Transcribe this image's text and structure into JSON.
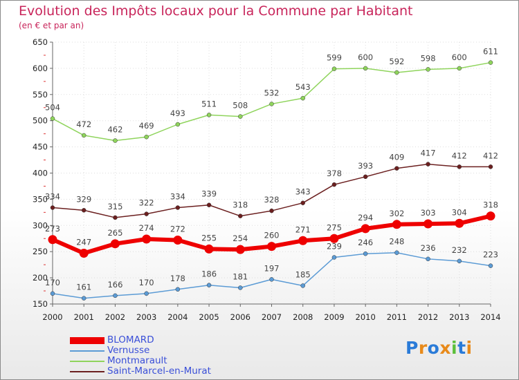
{
  "chart_data": {
    "type": "line",
    "title": "Evolution des Impôts locaux pour la Commune par Habitant",
    "subtitle": "(en € et par an)",
    "xlabel": "",
    "ylabel": "",
    "x": [
      2000,
      2001,
      2002,
      2003,
      2004,
      2005,
      2006,
      2007,
      2008,
      2009,
      2010,
      2011,
      2012,
      2013,
      2014
    ],
    "ylim": [
      150,
      650
    ],
    "yticks": [
      150,
      200,
      250,
      300,
      350,
      400,
      450,
      500,
      550,
      600,
      650
    ],
    "grid": true,
    "legend_position": "bottom-left",
    "series": [
      {
        "name": "BLOMARD",
        "color": "#ee0000",
        "width": 6,
        "values": [
          273,
          247,
          265,
          274,
          272,
          255,
          254,
          260,
          271,
          275,
          294,
          302,
          303,
          304,
          318
        ]
      },
      {
        "name": "Vernusse",
        "color": "#5b9bd5",
        "width": 1.5,
        "values": [
          170,
          161,
          166,
          170,
          178,
          186,
          181,
          197,
          185,
          239,
          246,
          248,
          236,
          232,
          223
        ]
      },
      {
        "name": "Montmarault",
        "color": "#8fd45c",
        "width": 1.5,
        "values": [
          504,
          472,
          462,
          469,
          493,
          511,
          508,
          532,
          543,
          599,
          600,
          592,
          598,
          600,
          611
        ]
      },
      {
        "name": "Saint-Marcel-en-Murat",
        "color": "#6b1f1f",
        "width": 1.5,
        "values": [
          334,
          329,
          315,
          322,
          334,
          339,
          318,
          328,
          343,
          378,
          393,
          409,
          417,
          412,
          412
        ]
      }
    ]
  },
  "logo": {
    "letters": [
      "P",
      "r",
      "o",
      "x",
      "i",
      "t",
      "i"
    ],
    "colors": [
      "#2a7bd8",
      "#e88a1a",
      "#2a7bd8",
      "#e88a1a",
      "#5bbf3a",
      "#2a7bd8",
      "#e88a1a"
    ]
  }
}
